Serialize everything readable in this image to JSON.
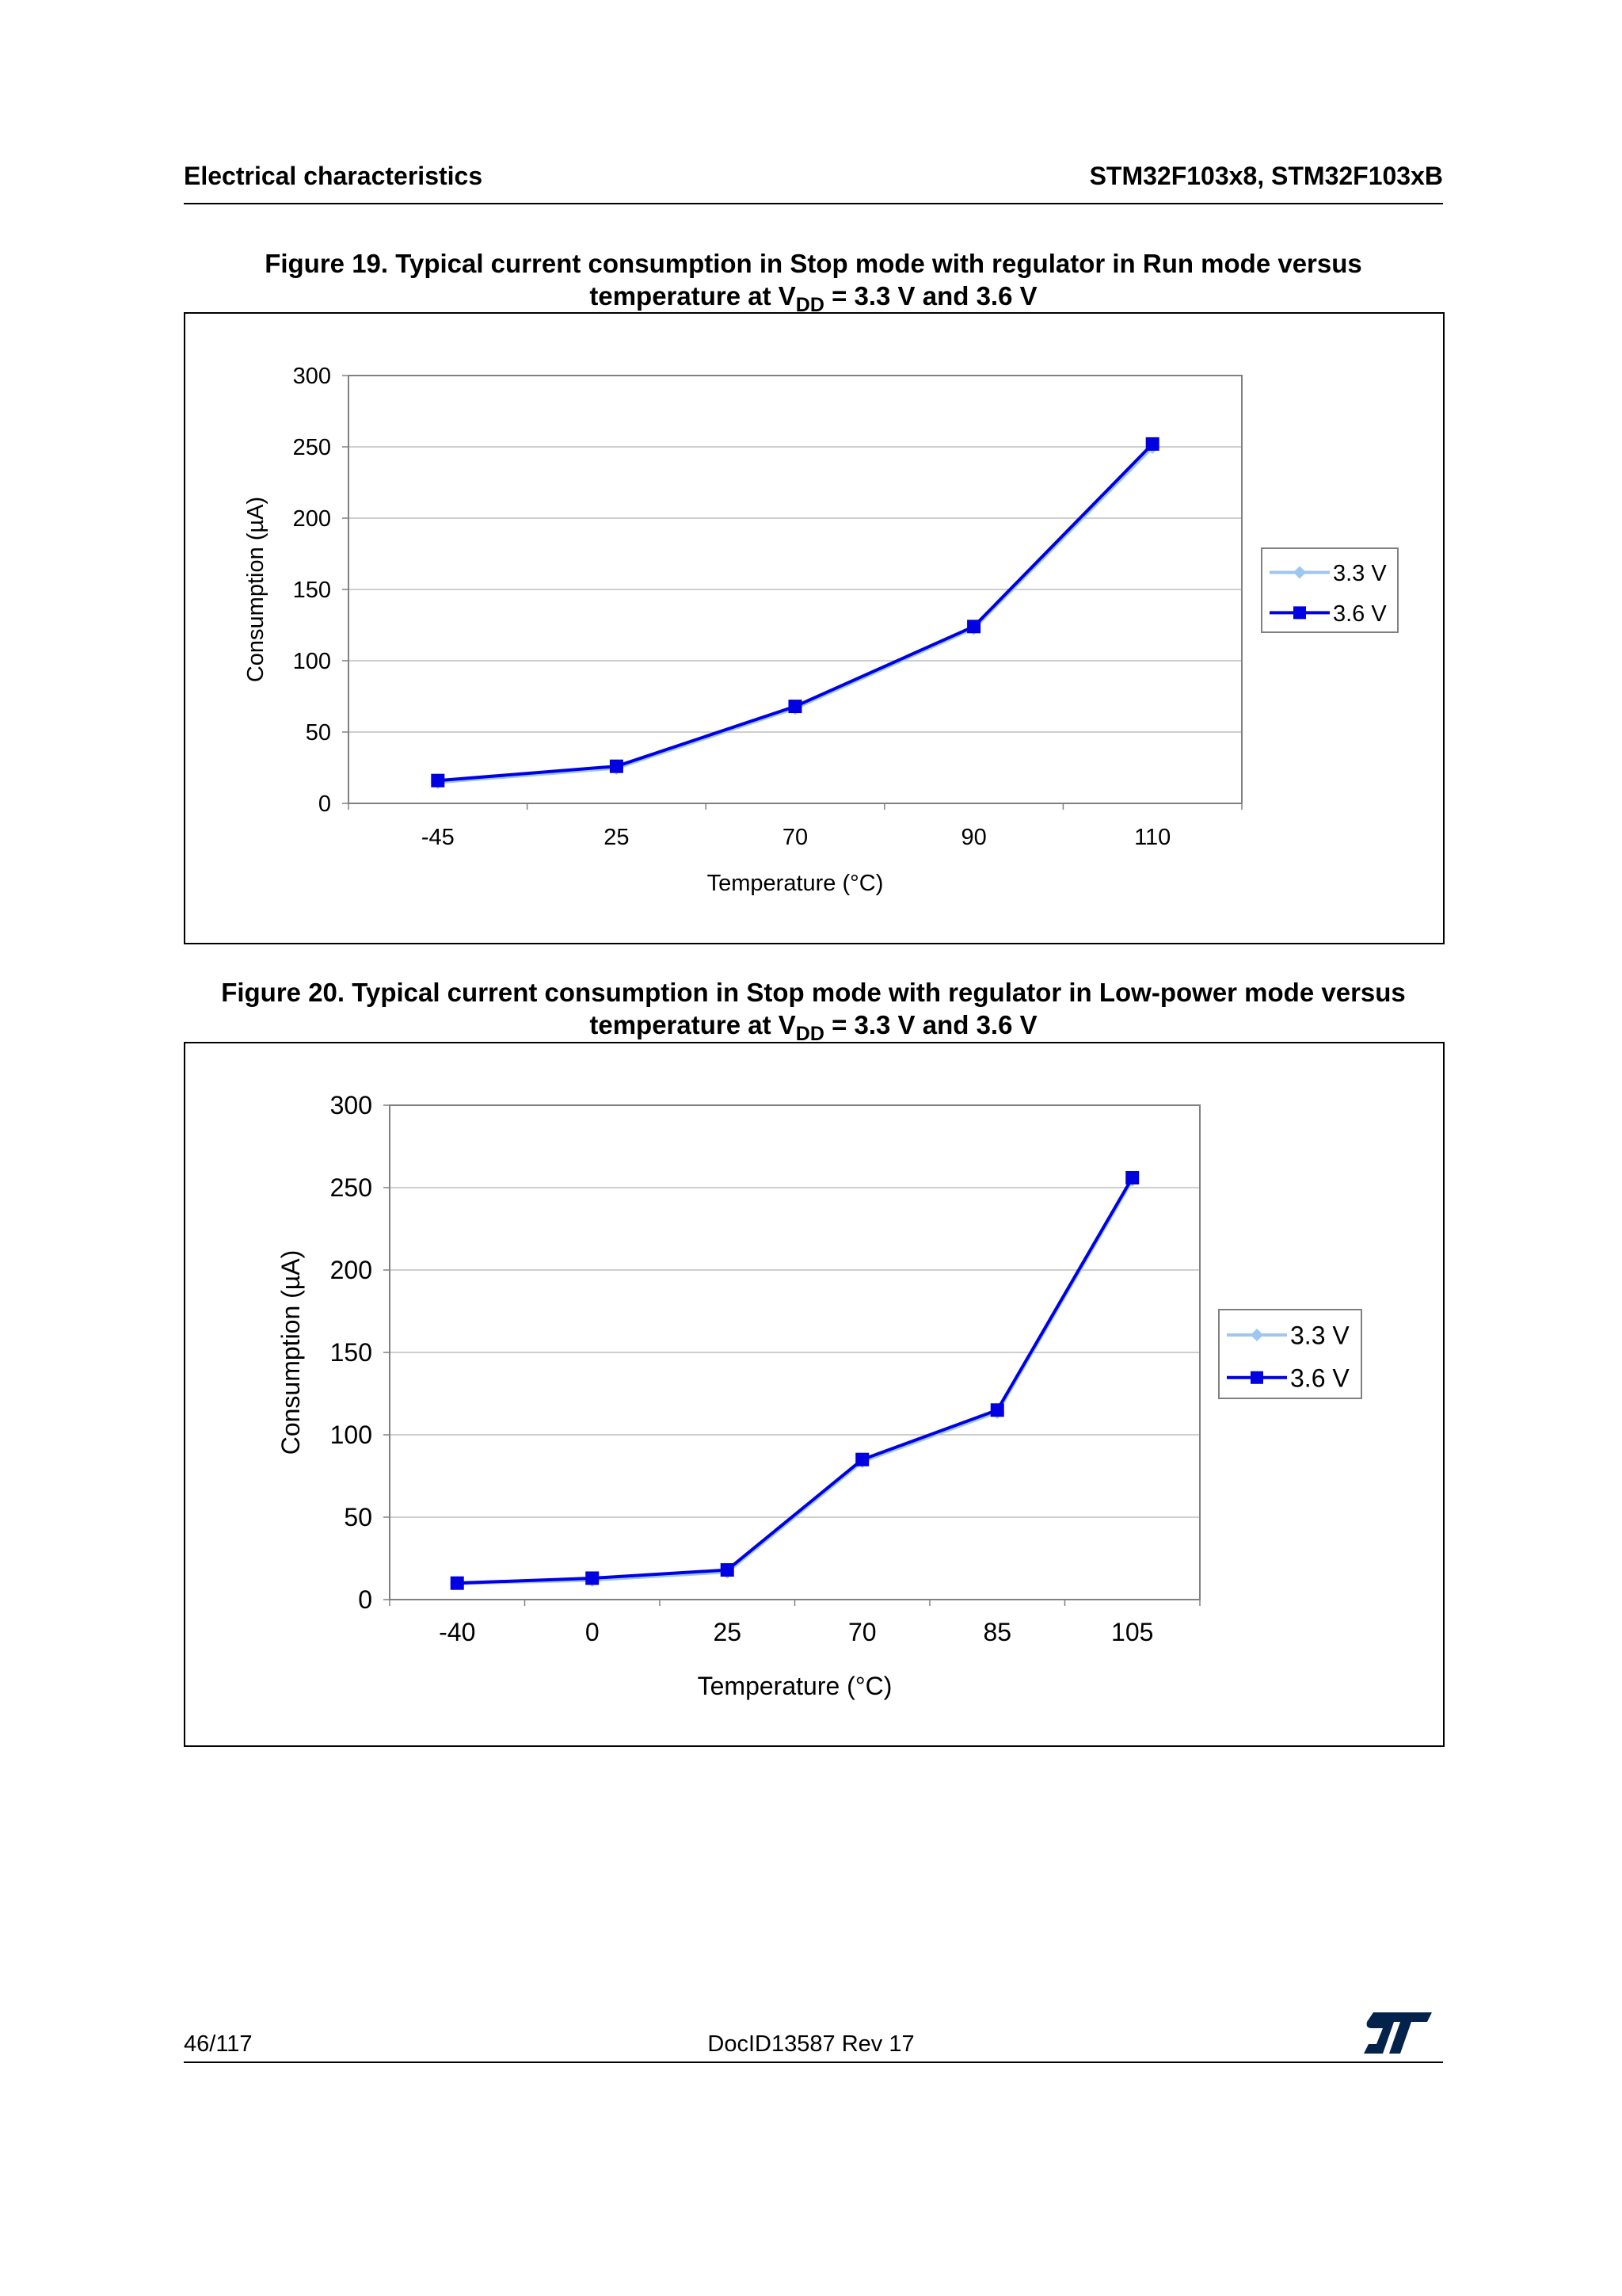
{
  "header": {
    "left": "Electrical characteristics",
    "right": "STM32F103x8, STM32F103xB"
  },
  "figures": [
    {
      "caption_line1": "Figure 19. Typical current consumption in Stop mode with regulator in Run mode versus",
      "caption_line2_pre": "temperature at V",
      "caption_line2_sub": "DD",
      "caption_line2_post": " = 3.3 V and 3.6 V"
    },
    {
      "caption_line1": "Figure 20. Typical current consumption in Stop mode with regulator in Low-power mode versus",
      "caption_line2_pre": "temperature at V",
      "caption_line2_sub": "DD",
      "caption_line2_post": " = 3.3 V and 3.6 V"
    }
  ],
  "chart_data": [
    {
      "type": "line",
      "title": "Figure 19. Typical current consumption in Stop mode with regulator in Run mode versus temperature at VDD = 3.3 V and 3.6 V",
      "xlabel": "Temperature (°C)",
      "ylabel": "Consumption (µA)",
      "categories": [
        "-45",
        "25",
        "70",
        "90",
        "110"
      ],
      "ylim": [
        0,
        300
      ],
      "yticks": [
        "0",
        "50",
        "100",
        "150",
        "200",
        "250",
        "300"
      ],
      "legend_position": "right",
      "series": [
        {
          "name": "3.3 V",
          "values": [
            15,
            25,
            67,
            123,
            250
          ],
          "color": "#9ec6f0",
          "marker": "diamond"
        },
        {
          "name": "3.6 V",
          "values": [
            16,
            26,
            68,
            124,
            252
          ],
          "color": "#0000e0",
          "marker": "square"
        }
      ]
    },
    {
      "type": "line",
      "title": "Figure 20. Typical current consumption in Stop mode with regulator in Low-power mode versus temperature at VDD = 3.3 V and 3.6 V",
      "xlabel": "Temperature (°C)",
      "ylabel": "Consumption (µA)",
      "categories": [
        "-40",
        "0",
        "25",
        "70",
        "85",
        "105"
      ],
      "ylim": [
        0,
        300
      ],
      "yticks": [
        "0",
        "50",
        "100",
        "150",
        "200",
        "250",
        "300"
      ],
      "legend_position": "right",
      "series": [
        {
          "name": "3.3 V",
          "values": [
            10,
            12,
            17,
            84,
            114,
            255
          ],
          "color": "#9ec6f0",
          "marker": "diamond"
        },
        {
          "name": "3.6 V",
          "values": [
            10,
            13,
            18,
            85,
            115,
            256
          ],
          "color": "#0000e0",
          "marker": "square"
        }
      ]
    }
  ],
  "footer": {
    "page": "46/117",
    "doc_id": "DocID13587 Rev 17",
    "logo_text": "ST"
  }
}
